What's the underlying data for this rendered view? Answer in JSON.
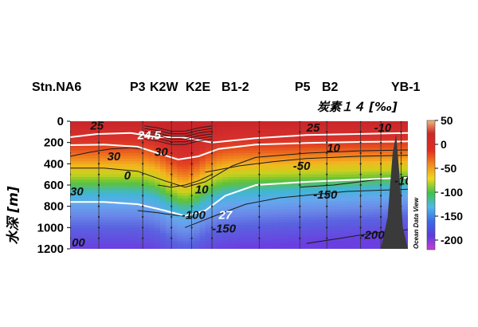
{
  "chart_data": {
    "type": "heatmap",
    "title": "炭素１４ [‰]",
    "ylabel": "水深 [m]",
    "xlabel": "",
    "watermark": "Ocean Data View",
    "ylim": [
      0,
      1200
    ],
    "y_ticks": [
      0,
      200,
      400,
      600,
      800,
      1000,
      1200
    ],
    "stations": [
      "Stn.NA6",
      "P3",
      "K2W",
      "K2E",
      "B1-2",
      "P5",
      "B2",
      "YB-1"
    ],
    "colorbar": {
      "range": [
        -220,
        50
      ],
      "ticks": [
        50,
        0,
        -50,
        -100,
        -150,
        -200
      ],
      "colors": [
        "#c73cd6",
        "#5a3ce0",
        "#3c6ae6",
        "#4fb8e8",
        "#3fc24a",
        "#f0d81e",
        "#f08a1e",
        "#e42b1e",
        "#c92a2a",
        "#f2b87a"
      ]
    },
    "contours_white": [
      {
        "level": "24.5",
        "x": [
          0,
          0.08,
          0.18,
          0.26,
          0.33,
          0.42,
          0.55,
          0.7,
          0.85,
          1.0
        ],
        "depth": [
          150,
          120,
          110,
          150,
          150,
          200,
          160,
          130,
          120,
          110
        ]
      },
      {
        "level": "",
        "x": [
          0,
          0.1,
          0.2,
          0.26,
          0.32,
          0.38,
          0.44,
          0.55,
          0.7,
          0.85,
          1.0
        ],
        "depth": [
          225,
          220,
          240,
          300,
          360,
          330,
          260,
          220,
          205,
          195,
          190
        ]
      },
      {
        "level": "27",
        "x": [
          0,
          0.1,
          0.2,
          0.28,
          0.34,
          0.4,
          0.46,
          0.55,
          0.7,
          0.85,
          1.0
        ],
        "depth": [
          760,
          760,
          780,
          840,
          890,
          840,
          700,
          600,
          570,
          550,
          530
        ]
      }
    ],
    "contours_dark": [
      {
        "level": "30",
        "x": [
          0,
          0.06,
          0.12,
          0.18
        ],
        "depth": [
          330,
          290,
          260,
          250
        ]
      },
      {
        "level": "30",
        "x": [
          0.18,
          0.22,
          0.26,
          0.3
        ],
        "depth": [
          250,
          260,
          300,
          330
        ]
      },
      {
        "level": "0",
        "x": [
          0,
          0.1,
          0.2,
          0.28,
          0.34,
          0.4,
          0.48,
          0.55,
          0.7,
          0.85,
          1.0
        ],
        "depth": [
          440,
          440,
          470,
          560,
          620,
          570,
          420,
          340,
          300,
          280,
          270
        ]
      },
      {
        "level": "10",
        "x": [
          0.26,
          0.3,
          0.34,
          0.38,
          0.42
        ],
        "depth": [
          600,
          620,
          600,
          560,
          500
        ]
      },
      {
        "level": "-50",
        "x": [
          0.4,
          0.5,
          0.6,
          0.7,
          0.85,
          1.0
        ],
        "depth": [
          480,
          420,
          380,
          350,
          330,
          320
        ]
      },
      {
        "level": "-100",
        "x": [
          0.2,
          0.26,
          0.3,
          0.36
        ],
        "depth": [
          840,
          860,
          880,
          900
        ]
      },
      {
        "level": "-100",
        "x": [
          0.68,
          0.78,
          0.88,
          1.0
        ],
        "depth": [
          620,
          600,
          560,
          520
        ]
      },
      {
        "level": "-150",
        "x": [
          0.34,
          0.42,
          0.52,
          0.62,
          0.72,
          0.82,
          1.0
        ],
        "depth": [
          1000,
          900,
          780,
          720,
          690,
          660,
          640
        ]
      },
      {
        "level": "-200",
        "x": [
          0.7,
          0.8,
          0.9,
          1.0
        ],
        "depth": [
          1150,
          1100,
          1050,
          1020
        ]
      }
    ],
    "labels_white": [
      {
        "text": "24.5",
        "x": 0.2,
        "depth": 130
      },
      {
        "text": "27",
        "x": 0.44,
        "depth": 880
      }
    ],
    "labels_dark": [
      {
        "text": "25",
        "x": 0.06,
        "depth": 40
      },
      {
        "text": "25",
        "x": 0.7,
        "depth": 60
      },
      {
        "text": "-10",
        "x": 0.9,
        "depth": 60
      },
      {
        "text": "30",
        "x": 0.11,
        "depth": 330
      },
      {
        "text": "30",
        "x": 0.25,
        "depth": 290
      },
      {
        "text": "10",
        "x": 0.76,
        "depth": 250
      },
      {
        "text": "0",
        "x": 0.16,
        "depth": 510
      },
      {
        "text": "-50",
        "x": 0.66,
        "depth": 420
      },
      {
        "text": "10",
        "x": 0.37,
        "depth": 640
      },
      {
        "text": "-150",
        "x": 0.72,
        "depth": 690
      },
      {
        "text": "-100",
        "x": 0.96,
        "depth": 560
      },
      {
        "text": "30",
        "x": 0.0,
        "depth": 660
      },
      {
        "text": "-100",
        "x": 0.33,
        "depth": 880
      },
      {
        "text": "-150",
        "x": 0.42,
        "depth": 1010
      },
      {
        "text": "-200",
        "x": 0.86,
        "depth": 1070
      },
      {
        "text": "00",
        "x": 0.005,
        "depth": 1140
      }
    ],
    "seafloor": {
      "x": [
        0.92,
        0.94,
        0.955,
        0.965,
        0.975,
        0.985,
        1.0
      ],
      "depth": [
        1200,
        900,
        300,
        120,
        500,
        1000,
        1200
      ]
    }
  }
}
